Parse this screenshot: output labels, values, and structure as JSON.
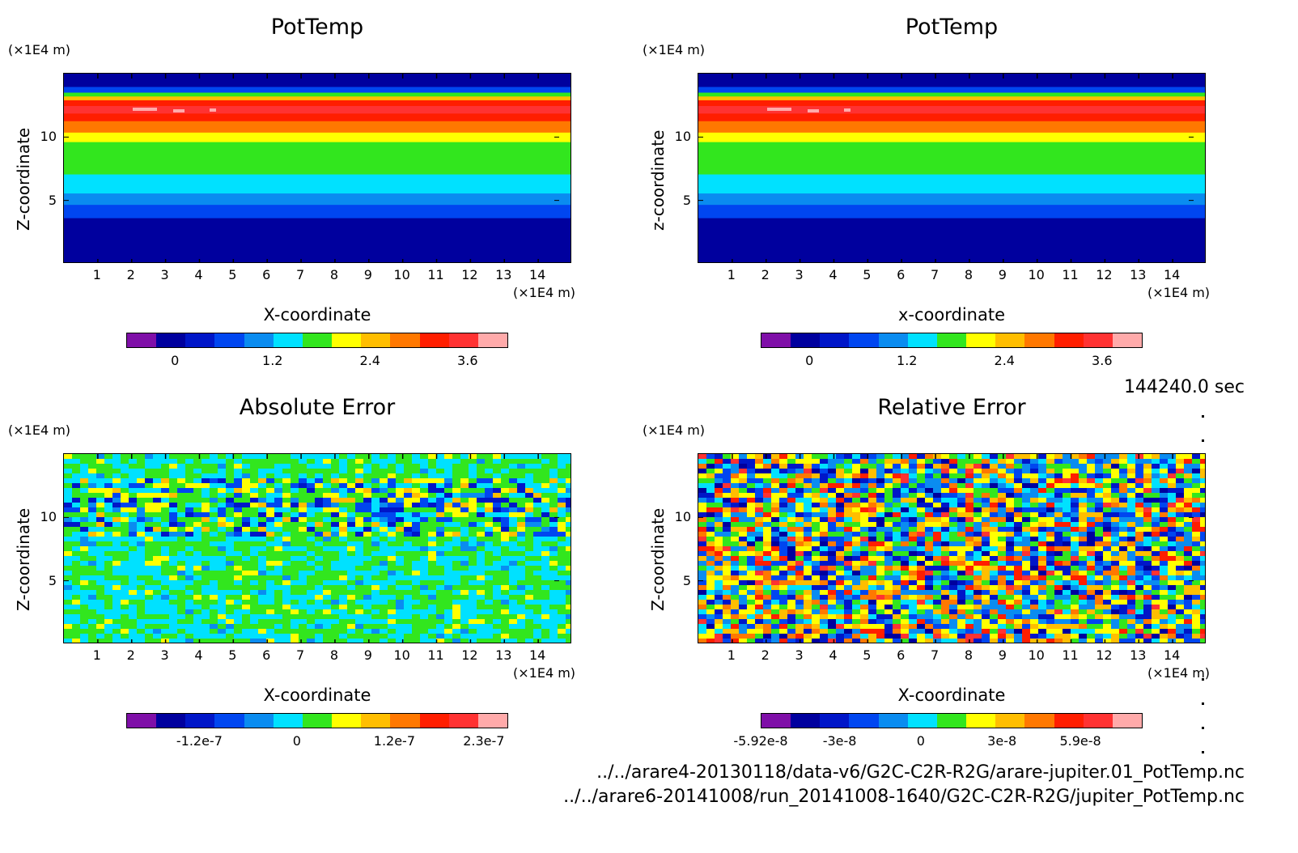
{
  "time_label": "144240.0 sec",
  "files": [
    "../../arare4-20130118/data-v6/G2C-C2R-R2G/arare-jupiter.01_PotTemp.nc",
    "../../arare6-20141008/run_20141008-1640/G2C-C2R-R2G/jupiter_PotTemp.nc"
  ],
  "chart_data": [
    {
      "type": "heatmap",
      "title": "PotTemp",
      "xlabel": "X-coordinate",
      "ylabel": "Z-coordinate",
      "x_unit": "(×1E4 m)",
      "y_unit": "(×1E4 m)",
      "xlim": [
        0,
        15
      ],
      "ylim": [
        0,
        15
      ],
      "x_ticks": [
        "1",
        "2",
        "3",
        "4",
        "5",
        "6",
        "7",
        "8",
        "9",
        "10",
        "11",
        "12",
        "13",
        "14"
      ],
      "y_ticks": [
        "5",
        "10"
      ],
      "colorbar": {
        "colors": [
          "#7f0fa8",
          "#00009e",
          "#0016c8",
          "#0046f0",
          "#0a8cf0",
          "#00e1ff",
          "#32e61e",
          "#ffff00",
          "#ffbe00",
          "#ff7800",
          "#ff1e00",
          "#ff3232",
          "#ffaaaa"
        ],
        "tick_labels": [
          "0",
          "1.2",
          "2.4",
          "3.6"
        ],
        "tick_values": [
          0,
          1.2,
          2.4,
          3.6
        ],
        "range": [
          -0.6,
          4.1
        ]
      },
      "field": "stratified"
    },
    {
      "type": "heatmap",
      "title": "PotTemp",
      "xlabel": "x-coordinate",
      "ylabel": "z-coordinate",
      "x_unit": "(×1E4 m)",
      "y_unit": "(×1E4 m)",
      "xlim": [
        0,
        15
      ],
      "ylim": [
        0,
        15
      ],
      "x_ticks": [
        "1",
        "2",
        "3",
        "4",
        "5",
        "6",
        "7",
        "8",
        "9",
        "10",
        "11",
        "12",
        "13",
        "14"
      ],
      "y_ticks": [
        "5",
        "10"
      ],
      "colorbar": {
        "colors": [
          "#7f0fa8",
          "#00009e",
          "#0016c8",
          "#0046f0",
          "#0a8cf0",
          "#00e1ff",
          "#32e61e",
          "#ffff00",
          "#ffbe00",
          "#ff7800",
          "#ff1e00",
          "#ff3232",
          "#ffaaaa"
        ],
        "tick_labels": [
          "0",
          "1.2",
          "2.4",
          "3.6"
        ],
        "tick_values": [
          0,
          1.2,
          2.4,
          3.6
        ],
        "range": [
          -0.6,
          4.1
        ]
      },
      "field": "stratified"
    },
    {
      "type": "heatmap",
      "title": "Absolute Error",
      "xlabel": "X-coordinate",
      "ylabel": "Z-coordinate",
      "x_unit": "(×1E4 m)",
      "y_unit": "(×1E4 m)",
      "xlim": [
        0,
        15
      ],
      "ylim": [
        0,
        15
      ],
      "x_ticks": [
        "1",
        "2",
        "3",
        "4",
        "5",
        "6",
        "7",
        "8",
        "9",
        "10",
        "11",
        "12",
        "13",
        "14"
      ],
      "y_ticks": [
        "5",
        "10"
      ],
      "colorbar": {
        "colors": [
          "#7f0fa8",
          "#00009e",
          "#0016c8",
          "#0046f0",
          "#0a8cf0",
          "#00e1ff",
          "#32e61e",
          "#ffff00",
          "#ffbe00",
          "#ff7800",
          "#ff1e00",
          "#ff3232",
          "#ffaaaa"
        ],
        "tick_labels": [
          "-1.2e-7",
          "0",
          "1.2e-7",
          "2.3e-7"
        ],
        "tick_values": [
          -1.2e-07,
          0,
          1.2e-07,
          2.3e-07
        ],
        "range": [
          -2.1e-07,
          2.6e-07
        ]
      },
      "field": "abs_error"
    },
    {
      "type": "heatmap",
      "title": "Relative Error",
      "xlabel": "X-coordinate",
      "ylabel": "Z-coordinate",
      "x_unit": "(×1E4 m)",
      "y_unit": "(×1E4 m)",
      "xlim": [
        0,
        15
      ],
      "ylim": [
        0,
        15
      ],
      "x_ticks": [
        "1",
        "2",
        "3",
        "4",
        "5",
        "6",
        "7",
        "8",
        "9",
        "10",
        "11",
        "12",
        "13",
        "14"
      ],
      "y_ticks": [
        "5",
        "10"
      ],
      "colorbar": {
        "colors": [
          "#7f0fa8",
          "#00009e",
          "#0016c8",
          "#0046f0",
          "#0a8cf0",
          "#00e1ff",
          "#32e61e",
          "#ffff00",
          "#ffbe00",
          "#ff7800",
          "#ff1e00",
          "#ff3232",
          "#ffaaaa"
        ],
        "tick_labels": [
          "-5.92e-8",
          "-3e-8",
          "0",
          "3e-8",
          "5.9e-8"
        ],
        "tick_values": [
          -5.92e-08,
          -3e-08,
          0,
          3e-08,
          5.9e-08
        ],
        "range": [
          -5.92e-08,
          8.2e-08
        ]
      },
      "field": "rel_error"
    }
  ]
}
